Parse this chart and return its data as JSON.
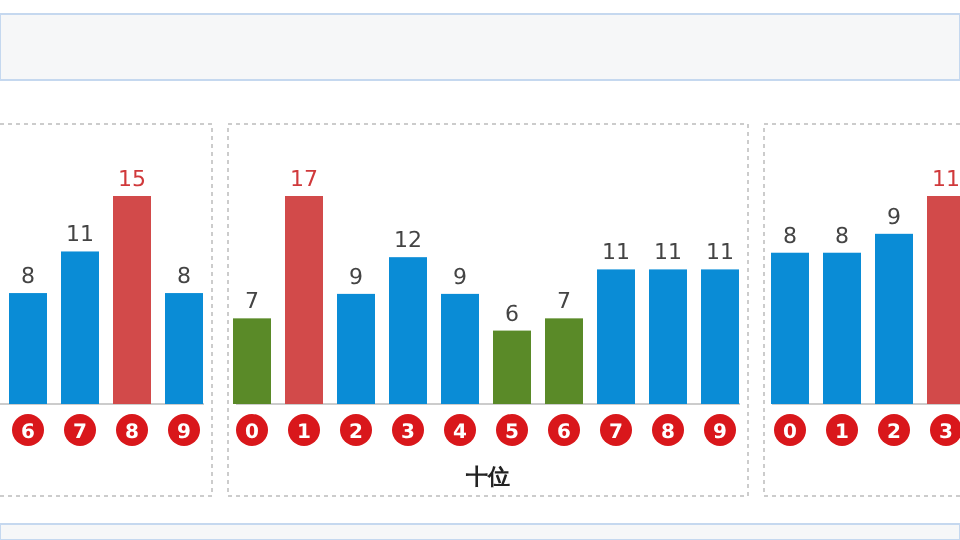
{
  "chart_data": [
    {
      "type": "bar",
      "categories": [
        "6",
        "7",
        "8",
        "9"
      ],
      "values": [
        8,
        11,
        15,
        8
      ],
      "colors": [
        "#0a8cd6",
        "#0a8cd6",
        "#d24a4a",
        "#0a8cd6"
      ],
      "data_labels": true
    },
    {
      "type": "bar",
      "xlabel": "十位",
      "categories": [
        "0",
        "1",
        "2",
        "3",
        "4",
        "5",
        "6",
        "7",
        "8",
        "9"
      ],
      "values": [
        7,
        17,
        9,
        12,
        9,
        6,
        7,
        11,
        11,
        11
      ],
      "colors": [
        "#5a8a28",
        "#d24a4a",
        "#0a8cd6",
        "#0a8cd6",
        "#0a8cd6",
        "#5a8a28",
        "#5a8a28",
        "#0a8cd6",
        "#0a8cd6",
        "#0a8cd6"
      ],
      "data_labels": true
    },
    {
      "type": "bar",
      "categories": [
        "0",
        "1",
        "2",
        "3"
      ],
      "values": [
        8,
        8,
        9,
        11
      ],
      "colors": [
        "#0a8cd6",
        "#0a8cd6",
        "#0a8cd6",
        "#d24a4a"
      ],
      "data_labels": true
    }
  ]
}
